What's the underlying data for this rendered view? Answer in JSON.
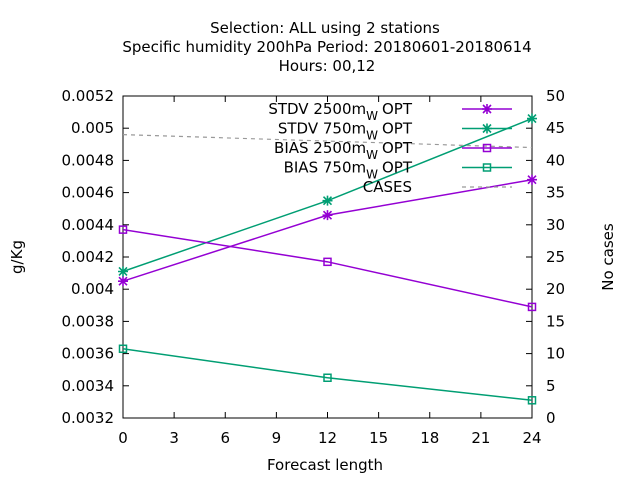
{
  "chart_data": {
    "type": "line",
    "title_lines": [
      "Selection: ALL using     2 stations",
      "Specific humidity 200hPa   Period: 20180601-20180614",
      "Hours:  00,12"
    ],
    "xlabel": "Forecast length",
    "ylabel": "g/Kg",
    "y2label": "No cases",
    "xlim": [
      0,
      24
    ],
    "ylim": [
      0.0032,
      0.0052
    ],
    "y2lim": [
      0,
      50
    ],
    "xticks": [
      "0",
      "3",
      "6",
      "9",
      "12",
      "15",
      "18",
      "21",
      "24"
    ],
    "yticks": [
      "0.0032",
      "0.0034",
      "0.0036",
      "0.0038",
      "0.004",
      "0.0042",
      "0.0044",
      "0.0046",
      "0.0048",
      "0.005",
      "0.0052"
    ],
    "y2ticks": [
      "0",
      "5",
      "10",
      "15",
      "20",
      "25",
      "30",
      "35",
      "40",
      "45",
      "50"
    ],
    "grid": false,
    "legend_position": "top-right",
    "series": [
      {
        "name": "STDV 2500m",
        "suffix": "W",
        "suffix_tail": "OPT",
        "color": "#9400d3",
        "marker": "star",
        "axis": "y",
        "x": [
          0,
          12,
          24
        ],
        "y": [
          0.00405,
          0.00446,
          0.00468
        ]
      },
      {
        "name": "STDV 750m",
        "suffix": "W",
        "suffix_tail": "OPT",
        "color": "#009e73",
        "marker": "star",
        "axis": "y",
        "x": [
          0,
          12,
          24
        ],
        "y": [
          0.00411,
          0.00455,
          0.00506
        ]
      },
      {
        "name": "BIAS 2500m",
        "suffix": "W",
        "suffix_tail": "OPT",
        "color": "#9400d3",
        "marker": "square",
        "axis": "y",
        "x": [
          0,
          12,
          24
        ],
        "y": [
          0.00437,
          0.00417,
          0.00389
        ]
      },
      {
        "name": "BIAS 750m",
        "suffix": "W",
        "suffix_tail": "OPT",
        "color": "#009e73",
        "marker": "square",
        "axis": "y",
        "x": [
          0,
          12,
          24
        ],
        "y": [
          0.00363,
          0.00345,
          0.00331
        ]
      },
      {
        "name": "CASES",
        "suffix": "",
        "suffix_tail": "",
        "color": "#999999",
        "marker": "none",
        "dashed": true,
        "axis": "y2",
        "x": [
          0,
          12,
          24
        ],
        "y": [
          44,
          43,
          42
        ]
      }
    ]
  }
}
